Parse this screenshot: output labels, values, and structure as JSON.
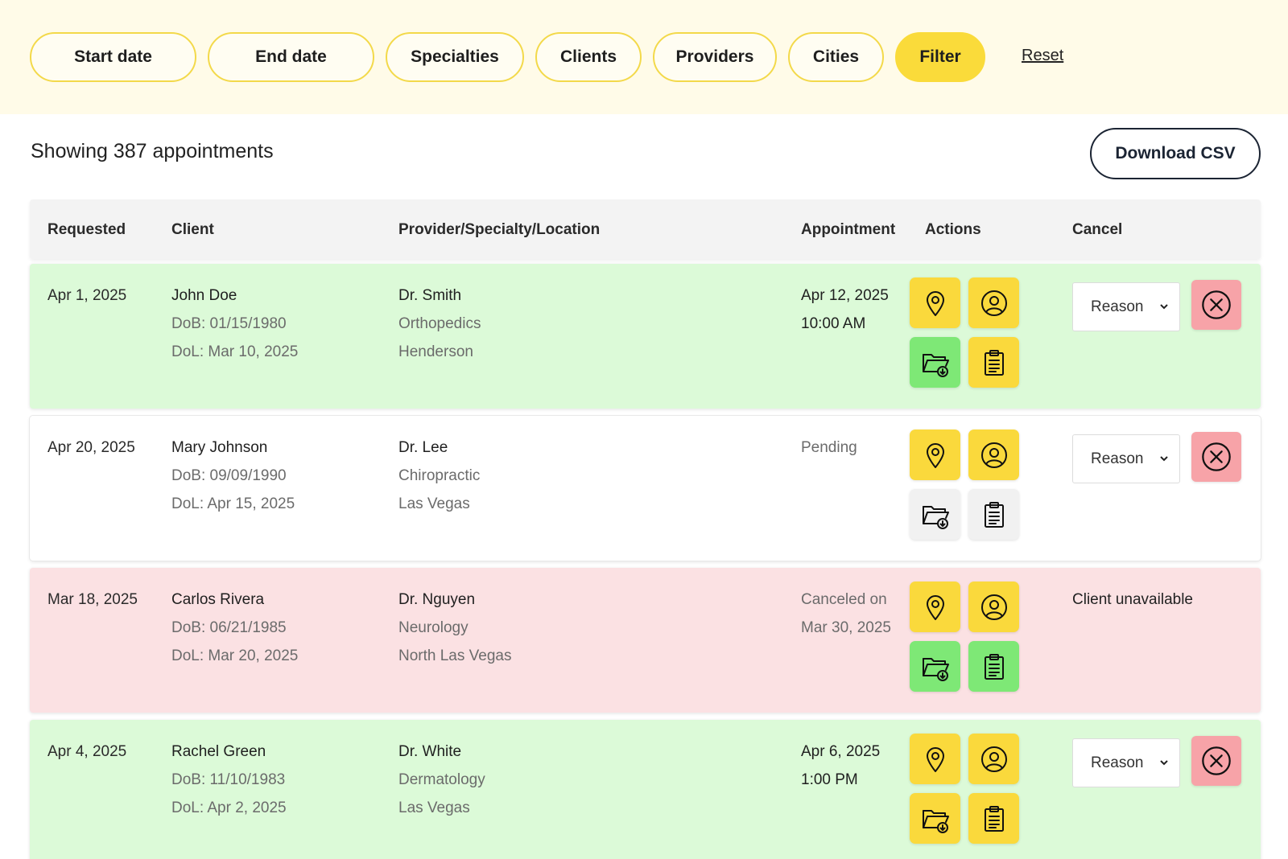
{
  "filters": {
    "start_date": "Start date",
    "end_date": "End date",
    "specialties": "Specialties",
    "clients": "Clients",
    "providers": "Providers",
    "cities": "Cities",
    "filter": "Filter",
    "reset": "Reset"
  },
  "summary": {
    "text": "Showing 387 appointments",
    "download_label": "Download CSV"
  },
  "table": {
    "headers": {
      "requested": "Requested",
      "client": "Client",
      "provider": "Provider/Specialty/Location",
      "appointment": "Appointment",
      "actions": "Actions",
      "cancel": "Cancel"
    },
    "rows": [
      {
        "status": "confirmed",
        "requested": "Apr 1, 2025",
        "client_name": "John Doe",
        "dob": "DoB: 01/15/1980",
        "dol": "DoL: Mar 10, 2025",
        "provider": "Dr. Smith",
        "specialty": "Orthopedics",
        "location": "Henderson",
        "appt_line1": "Apr 12, 2025",
        "appt_line2": "10:00 AM",
        "cancel_select": "Reason"
      },
      {
        "status": "pending",
        "requested": "Apr 20, 2025",
        "client_name": "Mary Johnson",
        "dob": "DoB: 09/09/1990",
        "dol": "DoL: Apr 15, 2025",
        "provider": "Dr. Lee",
        "specialty": "Chiropractic",
        "location": "Las Vegas",
        "appt_line1": "Pending",
        "appt_line2": "",
        "cancel_select": "Reason"
      },
      {
        "status": "canceled",
        "requested": "Mar 18, 2025",
        "client_name": "Carlos Rivera",
        "dob": "DoB: 06/21/1985",
        "dol": "DoL: Mar 20, 2025",
        "provider": "Dr. Nguyen",
        "specialty": "Neurology",
        "location": "North Las Vegas",
        "appt_line1": "Canceled on",
        "appt_line2": "Mar 30, 2025",
        "cancel_text": "Client unavailable"
      },
      {
        "status": "confirmed",
        "requested": "Apr 4, 2025",
        "client_name": "Rachel Green",
        "dob": "DoB: 11/10/1983",
        "dol": "DoL: Apr 2, 2025",
        "provider": "Dr. White",
        "specialty": "Dermatology",
        "location": "Las Vegas",
        "appt_line1": "Apr 6, 2025",
        "appt_line2": "1:00 PM",
        "cancel_select": "Reason"
      }
    ]
  },
  "icons": [
    "map-pin-icon",
    "user-circle-icon",
    "folder-download-icon",
    "clipboard-icon",
    "close-circle-icon",
    "chevron-down-icon"
  ],
  "colors": {
    "filter_bar_bg": "#fffbe8",
    "accent_yellow": "#fad93c",
    "confirmed_row": "#dcfad8",
    "canceled_row": "#fbe1e3",
    "action_green": "#7ee876",
    "cancel_red": "#f7a3a8"
  }
}
